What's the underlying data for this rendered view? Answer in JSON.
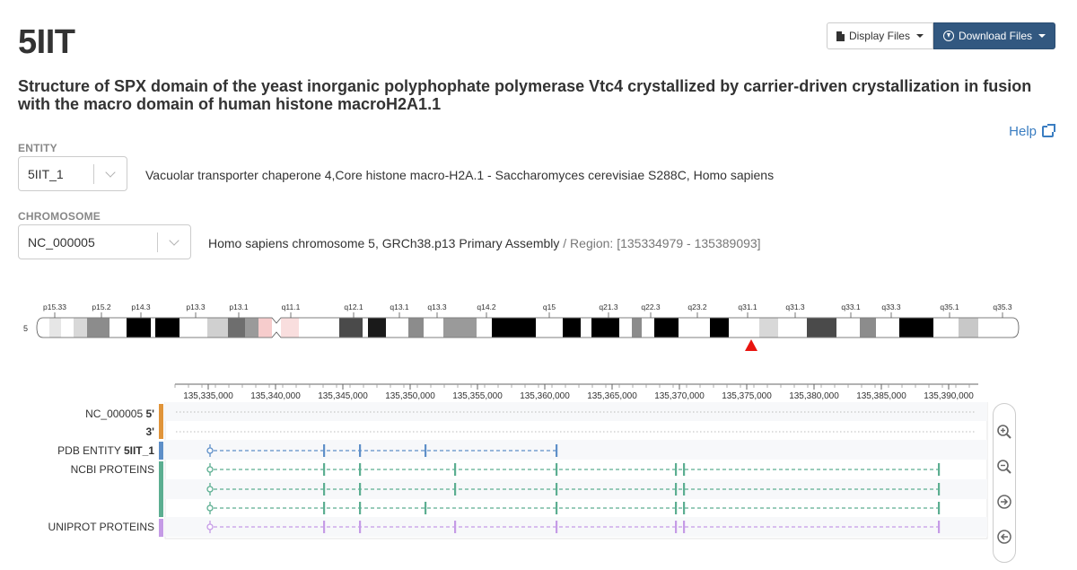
{
  "header": {
    "pdb_id": "5IIT",
    "display_files_label": "Display Files",
    "download_files_label": "Download Files",
    "title": "Structure of SPX domain of the yeast inorganic polyphophate polymerase Vtc4 crystallized by carrier-driven crystallization in fusion with the macro domain of human histone macroH2A1.1",
    "help_label": "Help"
  },
  "entity": {
    "label": "ENTITY",
    "value": "5IIT_1",
    "description": "Vacuolar transporter chaperone 4,Core histone macro-H2A.1 - Saccharomyces cerevisiae S288C, Homo sapiens"
  },
  "chromosome": {
    "label": "CHROMOSOME",
    "value": "NC_000005",
    "description": "Homo sapiens chromosome 5, GRCh38.p13 Primary Assembly",
    "region_text": "/ Region: [135334979 - 135389093]"
  },
  "ideogram": {
    "chromosome_label": "5",
    "bands": [
      "p15.33",
      "p15.2",
      "p14.3",
      "p13.3",
      "p13.1",
      "q11.1",
      "q12.1",
      "q13.1",
      "q13.3",
      "q14.2",
      "q15",
      "q21.3",
      "q22.3",
      "q23.2",
      "q31.1",
      "q31.3",
      "q33.1",
      "q33.3",
      "q35.1",
      "q35.3"
    ],
    "marker_color": "#e8140f"
  },
  "ruler": {
    "ticks": [
      "135,335,000",
      "135,340,000",
      "135,345,000",
      "135,350,000",
      "135,355,000",
      "135,360,000",
      "135,365,000",
      "135,370,000",
      "135,375,000",
      "135,380,000",
      "135,385,000",
      "135,390,000"
    ]
  },
  "tracks": {
    "nc_label": "NC_000005",
    "five_prime": "5'",
    "three_prime": "3'",
    "pdb_label": "PDB ENTITY",
    "pdb_entity": "5IIT_1",
    "ncbi_label": "NCBI PROTEINS",
    "uniprot_label": "UNIPROT PROTEINS",
    "colors": {
      "nc": "#e0943a",
      "pdb": "#5e8fc8",
      "ncbi": "#5cae91",
      "uniprot": "#c59be6"
    }
  },
  "zoom_controls": [
    "zoom-in-icon",
    "zoom-out-icon",
    "pan-right-icon",
    "pan-left-icon"
  ]
}
